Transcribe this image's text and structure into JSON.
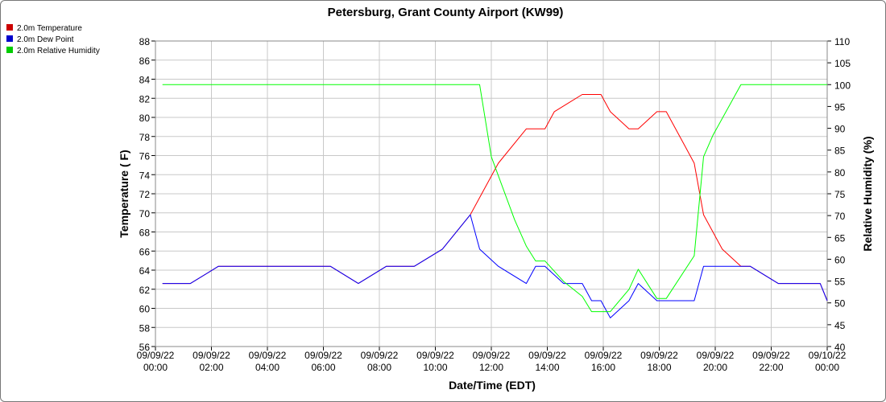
{
  "colors": {
    "temperature": "#ff0000",
    "dewpoint": "#0000ff",
    "humidity": "#00ff00",
    "grid": "#c8c8c8",
    "temperature_legend": "#cc0000",
    "dewpoint_legend": "#0000cc",
    "humidity_legend": "#00cc00"
  },
  "chart_data": {
    "type": "line",
    "title": "Petersburg, Grant County Airport (KW99)",
    "xlabel": "Date/Time (EDT)",
    "ylabel": "Temperature ( F)",
    "y2label": "Relative Humidity (%)",
    "xlim": [
      "2022-09-09 00:00",
      "2022-09-10 00:00"
    ],
    "ylim": [
      56,
      88
    ],
    "y2lim": [
      40,
      110
    ],
    "grid": true,
    "legend_position": "top-left",
    "x_ticks": [
      {
        "date": "09/09/22",
        "time": "00:00"
      },
      {
        "date": "09/09/22",
        "time": "02:00"
      },
      {
        "date": "09/09/22",
        "time": "04:00"
      },
      {
        "date": "09/09/22",
        "time": "06:00"
      },
      {
        "date": "09/09/22",
        "time": "08:00"
      },
      {
        "date": "09/09/22",
        "time": "10:00"
      },
      {
        "date": "09/09/22",
        "time": "12:00"
      },
      {
        "date": "09/09/22",
        "time": "14:00"
      },
      {
        "date": "09/09/22",
        "time": "16:00"
      },
      {
        "date": "09/09/22",
        "time": "18:00"
      },
      {
        "date": "09/09/22",
        "time": "20:00"
      },
      {
        "date": "09/09/22",
        "time": "22:00"
      },
      {
        "date": "09/10/22",
        "time": "00:00"
      }
    ],
    "y_ticks": [
      56,
      58,
      60,
      62,
      64,
      66,
      68,
      70,
      72,
      74,
      76,
      78,
      80,
      82,
      84,
      86,
      88
    ],
    "y2_ticks": [
      40,
      45,
      50,
      55,
      60,
      65,
      70,
      75,
      80,
      85,
      90,
      95,
      100,
      105,
      110
    ],
    "series": [
      {
        "name": "2.0m Temperature",
        "axis": "left",
        "points": [
          [
            "09/09/22 00:15",
            62.6
          ],
          [
            "09/09/22 01:15",
            62.6
          ],
          [
            "09/09/22 02:15",
            64.4
          ],
          [
            "09/09/22 03:15",
            64.4
          ],
          [
            "09/09/22 04:15",
            64.4
          ],
          [
            "09/09/22 05:15",
            64.4
          ],
          [
            "09/09/22 06:15",
            64.4
          ],
          [
            "09/09/22 07:15",
            62.6
          ],
          [
            "09/09/22 08:15",
            64.4
          ],
          [
            "09/09/22 09:15",
            64.4
          ],
          [
            "09/09/22 10:15",
            66.2
          ],
          [
            "09/09/22 11:15",
            69.8
          ],
          [
            "09/09/22 11:35",
            71.6
          ],
          [
            "09/09/22 12:15",
            75.2
          ],
          [
            "09/09/22 13:15",
            78.8
          ],
          [
            "09/09/22 13:55",
            78.8
          ],
          [
            "09/09/22 14:15",
            80.6
          ],
          [
            "09/09/22 15:15",
            82.4
          ],
          [
            "09/09/22 15:55",
            82.4
          ],
          [
            "09/09/22 16:15",
            80.6
          ],
          [
            "09/09/22 16:55",
            78.8
          ],
          [
            "09/09/22 17:15",
            78.8
          ],
          [
            "09/09/22 17:55",
            80.6
          ],
          [
            "09/09/22 18:15",
            80.6
          ],
          [
            "09/09/22 18:55",
            77.0
          ],
          [
            "09/09/22 19:15",
            75.2
          ],
          [
            "09/09/22 19:35",
            69.8
          ],
          [
            "09/09/22 19:55",
            68.0
          ],
          [
            "09/09/22 20:15",
            66.2
          ],
          [
            "09/09/22 20:55",
            64.4
          ],
          [
            "09/09/22 21:15",
            64.4
          ],
          [
            "09/09/22 22:15",
            62.6
          ],
          [
            "09/09/22 23:15",
            62.6
          ],
          [
            "09/09/22 23:45",
            62.6
          ],
          [
            "09/10/22 00:00",
            60.8
          ]
        ]
      },
      {
        "name": "2.0m Dew Point",
        "axis": "left",
        "points": [
          [
            "09/09/22 00:15",
            62.6
          ],
          [
            "09/09/22 01:15",
            62.6
          ],
          [
            "09/09/22 02:15",
            64.4
          ],
          [
            "09/09/22 03:15",
            64.4
          ],
          [
            "09/09/22 04:15",
            64.4
          ],
          [
            "09/09/22 05:15",
            64.4
          ],
          [
            "09/09/22 06:15",
            64.4
          ],
          [
            "09/09/22 07:15",
            62.6
          ],
          [
            "09/09/22 08:15",
            64.4
          ],
          [
            "09/09/22 09:15",
            64.4
          ],
          [
            "09/09/22 10:15",
            66.2
          ],
          [
            "09/09/22 11:15",
            69.8
          ],
          [
            "09/09/22 11:35",
            66.2
          ],
          [
            "09/09/22 12:15",
            64.4
          ],
          [
            "09/09/22 13:15",
            62.6
          ],
          [
            "09/09/22 13:35",
            64.4
          ],
          [
            "09/09/22 13:55",
            64.4
          ],
          [
            "09/09/22 14:35",
            62.6
          ],
          [
            "09/09/22 15:15",
            62.6
          ],
          [
            "09/09/22 15:35",
            60.8
          ],
          [
            "09/09/22 15:55",
            60.8
          ],
          [
            "09/09/22 16:15",
            59.0
          ],
          [
            "09/09/22 16:55",
            60.8
          ],
          [
            "09/09/22 17:15",
            62.6
          ],
          [
            "09/09/22 17:55",
            60.8
          ],
          [
            "09/09/22 18:15",
            60.8
          ],
          [
            "09/09/22 19:15",
            60.8
          ],
          [
            "09/09/22 19:35",
            64.4
          ],
          [
            "09/09/22 20:15",
            64.4
          ],
          [
            "09/09/22 20:55",
            64.4
          ],
          [
            "09/09/22 21:15",
            64.4
          ],
          [
            "09/09/22 22:15",
            62.6
          ],
          [
            "09/09/22 23:15",
            62.6
          ],
          [
            "09/09/22 23:45",
            62.6
          ],
          [
            "09/10/22 00:00",
            60.8
          ]
        ]
      },
      {
        "name": "2.0m Relative Humidity",
        "axis": "right",
        "points": [
          [
            "09/09/22 00:15",
            100
          ],
          [
            "09/09/22 11:35",
            100
          ],
          [
            "09/09/22 12:00",
            83.5
          ],
          [
            "09/09/22 12:50",
            69.0
          ],
          [
            "09/09/22 13:15",
            63.0
          ],
          [
            "09/09/22 13:35",
            59.6
          ],
          [
            "09/09/22 13:55",
            59.6
          ],
          [
            "09/09/22 14:35",
            54.9
          ],
          [
            "09/09/22 15:15",
            51.5
          ],
          [
            "09/09/22 15:35",
            48.0
          ],
          [
            "09/09/22 16:15",
            48.0
          ],
          [
            "09/09/22 16:55",
            53.1
          ],
          [
            "09/09/22 17:15",
            57.7
          ],
          [
            "09/09/22 17:55",
            51.0
          ],
          [
            "09/09/22 18:15",
            51.0
          ],
          [
            "09/09/22 19:15",
            60.8
          ],
          [
            "09/09/22 19:35",
            83.5
          ],
          [
            "09/09/22 19:55",
            88.4
          ],
          [
            "09/09/22 20:55",
            100
          ],
          [
            "09/10/22 00:00",
            100
          ]
        ]
      }
    ]
  }
}
